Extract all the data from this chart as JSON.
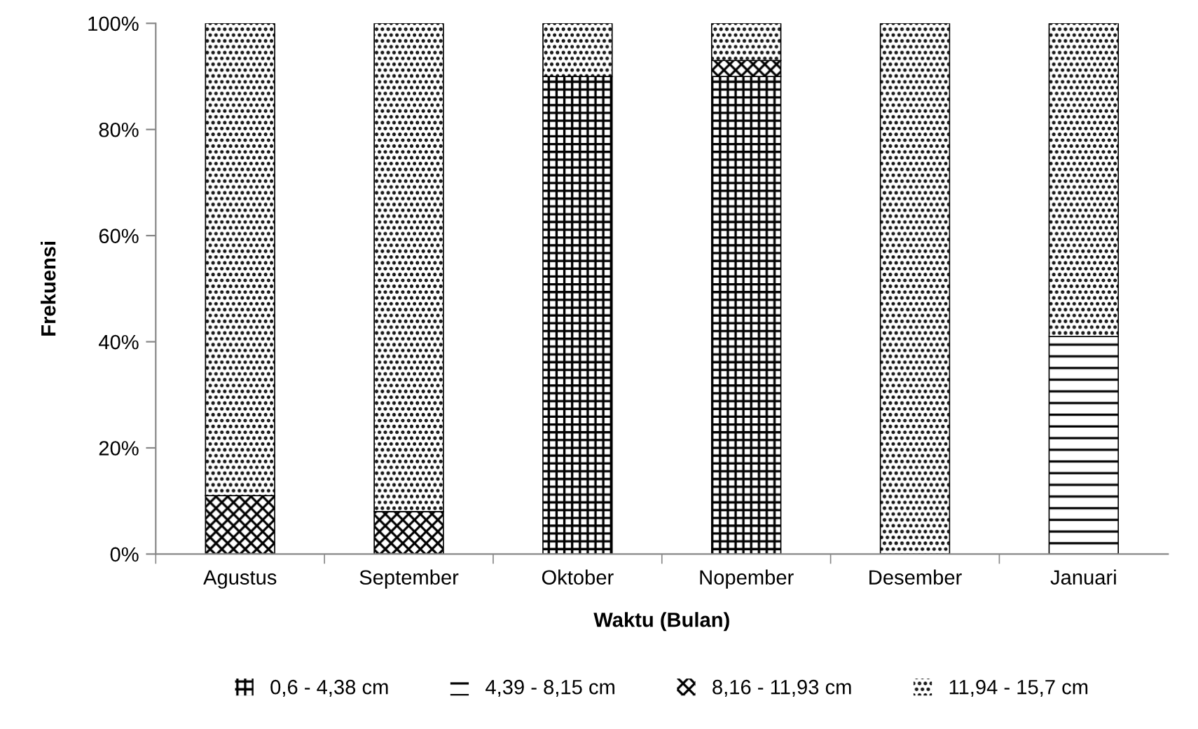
{
  "chart_data": {
    "type": "bar",
    "stacked": true,
    "xlabel": "Waktu (Bulan)",
    "ylabel": "Frekuensi",
    "categories": [
      "Agustus",
      "September",
      "Oktober",
      "Nopember",
      "Desember",
      "Januari"
    ],
    "series": [
      {
        "name": "0,6 - 4,38 cm",
        "color": "#000000",
        "values": [
          0,
          0,
          90,
          90,
          0,
          0
        ]
      },
      {
        "name": "4,39 - 8,15 cm",
        "color": "#000000",
        "values": [
          0,
          0,
          0,
          0,
          0,
          41
        ]
      },
      {
        "name": "8,16 - 11,93 cm",
        "color": "#000000",
        "values": [
          11,
          8,
          0,
          3,
          0,
          0
        ]
      },
      {
        "name": "11,94 - 15,7 cm",
        "color": "#000000",
        "values": [
          89,
          92,
          10,
          7,
          100,
          59
        ]
      }
    ],
    "ylim": [
      0,
      100
    ],
    "yticks": [
      {
        "value": 0,
        "label": "0%"
      },
      {
        "value": 20,
        "label": "20%"
      },
      {
        "value": 40,
        "label": "40%"
      },
      {
        "value": 60,
        "label": "60%"
      },
      {
        "value": 80,
        "label": "80%"
      },
      {
        "value": 100,
        "label": "100%"
      }
    ],
    "grid": false,
    "legend": "bottom"
  }
}
